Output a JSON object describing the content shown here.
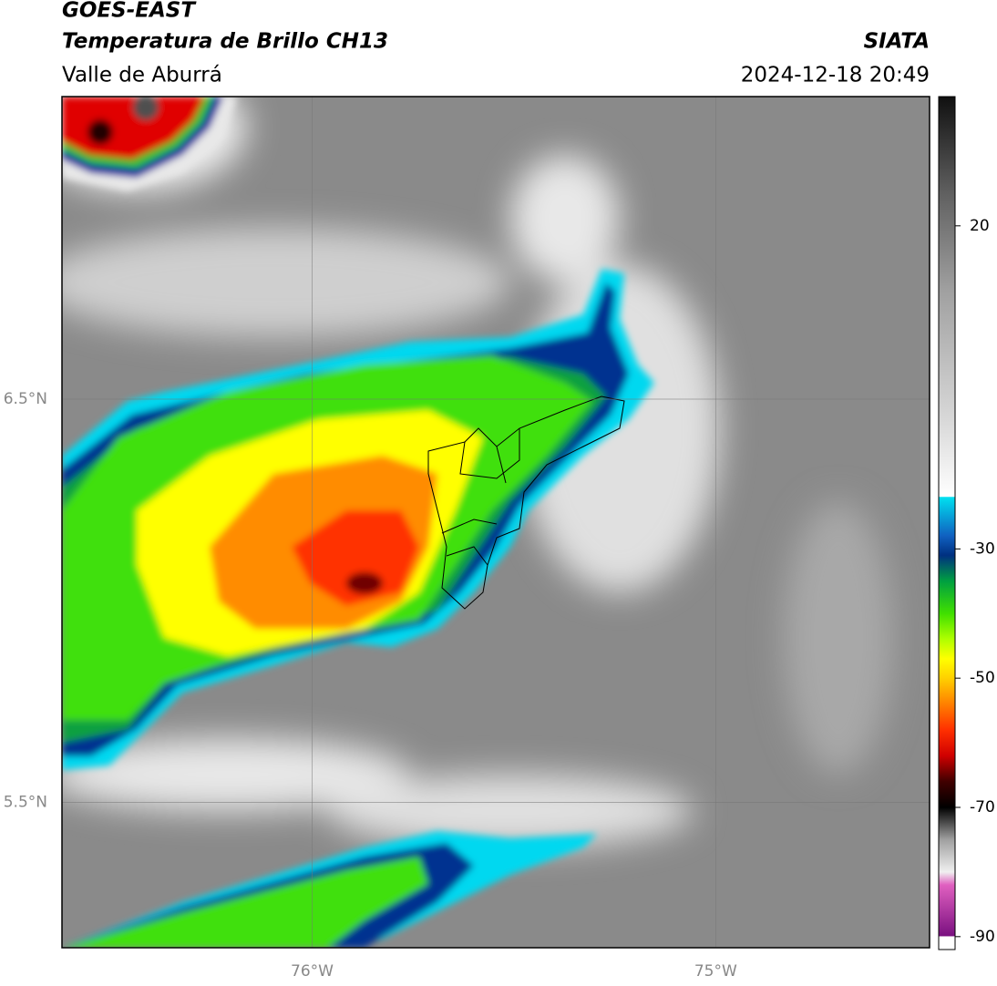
{
  "header": {
    "title": "GOES-EAST",
    "subtitle": "Temperatura de Brillo CH13",
    "region": "Valle de Aburrá",
    "source": "SIATA",
    "datetime": "2024-12-18 20:49"
  },
  "map": {
    "xlim": [
      -76.62,
      -74.47
    ],
    "ylim": [
      5.14,
      7.25
    ],
    "xticks": [
      {
        "value": -76,
        "label": "76°W"
      },
      {
        "value": -75,
        "label": "75°W"
      }
    ],
    "yticks": [
      {
        "value": 6.5,
        "label": "6.5°N"
      },
      {
        "value": 5.5,
        "label": "5.5°N"
      }
    ],
    "grid": true
  },
  "colorbar": {
    "lim": [
      -92,
      40
    ],
    "ticks": [
      20,
      -30,
      -50,
      -70,
      -90
    ],
    "colors": [
      {
        "value": -92,
        "color": "#ffffff"
      },
      {
        "value": -90,
        "color": "#ffffff"
      },
      {
        "value": -89.9,
        "color": "#7a1080"
      },
      {
        "value": -82,
        "color": "#e060c0"
      },
      {
        "value": -80,
        "color": "#f0f0f0"
      },
      {
        "value": -75,
        "color": "#a0a0a0"
      },
      {
        "value": -70,
        "color": "#000000"
      },
      {
        "value": -66,
        "color": "#400000"
      },
      {
        "value": -62,
        "color": "#d00000"
      },
      {
        "value": -58,
        "color": "#ff3000"
      },
      {
        "value": -54,
        "color": "#ff8000"
      },
      {
        "value": -50,
        "color": "#ffd000"
      },
      {
        "value": -47,
        "color": "#ffff00"
      },
      {
        "value": -44,
        "color": "#b0ff00"
      },
      {
        "value": -40,
        "color": "#40e000"
      },
      {
        "value": -35,
        "color": "#00a040"
      },
      {
        "value": -31,
        "color": "#003080"
      },
      {
        "value": -28,
        "color": "#1060c0"
      },
      {
        "value": -22,
        "color": "#00e0f0"
      },
      {
        "value": -21.9,
        "color": "#ffffff"
      },
      {
        "value": -10,
        "color": "#d8d8d8"
      },
      {
        "value": 10,
        "color": "#a0a0a0"
      },
      {
        "value": 25,
        "color": "#606060"
      },
      {
        "value": 40,
        "color": "#101010"
      }
    ]
  }
}
